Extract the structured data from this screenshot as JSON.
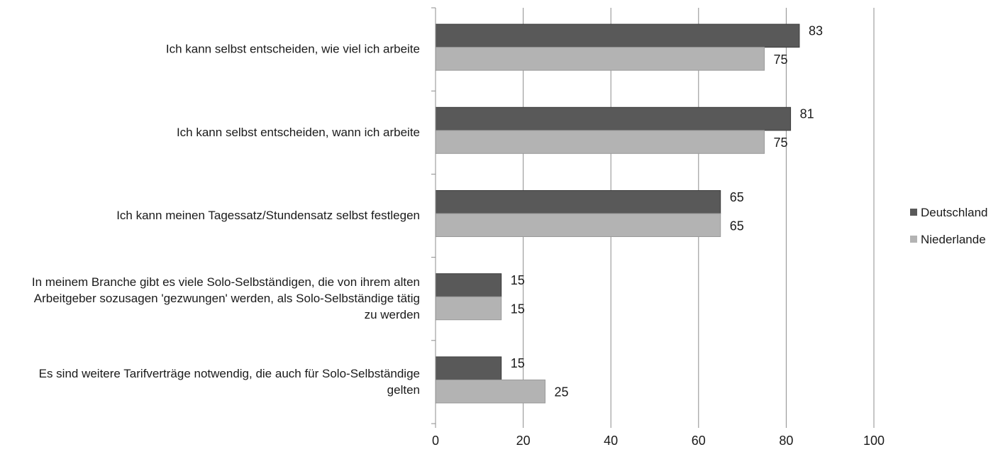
{
  "chart_data": {
    "type": "bar",
    "orientation": "horizontal",
    "categories": [
      [
        "Ich kann selbst entscheiden, wie viel ich arbeite"
      ],
      [
        "Ich kann selbst entscheiden, wann ich arbeite"
      ],
      [
        "Ich kann meinen Tagessatz/Stundensatz selbst festlegen"
      ],
      [
        "In meinem Branche gibt es viele Solo-Selbständigen, die von ihrem alten",
        "Arbeitgeber sozusagen 'gezwungen' werden, als Solo-Selbständige tätig",
        "zu werden"
      ],
      [
        "Es sind weitere Tarifverträge notwendig, die auch für Solo-Selbständige",
        "gelten"
      ]
    ],
    "series": [
      {
        "name": "Deutschland",
        "color": "#595959",
        "values": [
          83,
          81,
          65,
          15,
          15
        ]
      },
      {
        "name": "Niederlande",
        "color": "#b3b3b3",
        "values": [
          75,
          75,
          65,
          15,
          25
        ]
      }
    ],
    "xlim": [
      0,
      100
    ],
    "xticks": [
      0,
      20,
      40,
      60,
      80,
      100
    ],
    "title": "",
    "xlabel": "",
    "ylabel": "",
    "grid": true,
    "legend_position": "right"
  }
}
